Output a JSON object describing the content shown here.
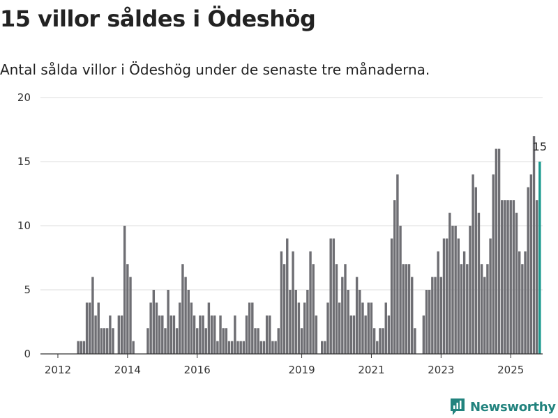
{
  "title": "15 villor såldes i Ödeshög",
  "subtitle": "Antal sålda villor i Ödeshög under de senaste tre månaderna.",
  "brand": {
    "name": "Newsworthy",
    "color": "#22837e"
  },
  "chart_data": {
    "type": "bar",
    "title": "15 villor såldes i Ödeshög",
    "subtitle": "Antal sålda villor i Ödeshög under de senaste tre månaderna.",
    "xlabel": "",
    "ylabel": "",
    "ylim": [
      0,
      20
    ],
    "yticks": [
      0,
      5,
      10,
      15,
      20
    ],
    "xticks": [
      "2012",
      "2014",
      "2016",
      "2019",
      "2021",
      "2023",
      "2025"
    ],
    "xlim": [
      "2011-07",
      "2025-12"
    ],
    "grid": true,
    "bar_color": "#6e6e73",
    "highlight_color": "#1a9a8f",
    "highlight_label": "15",
    "series": [
      {
        "start": "2012-08",
        "values": [
          1,
          1,
          1,
          4,
          4,
          6,
          3,
          4,
          2,
          2,
          2,
          3,
          2,
          0,
          3,
          3,
          10,
          7,
          6,
          1,
          0,
          0,
          0,
          0,
          2,
          4,
          5,
          4,
          3,
          3,
          2,
          5,
          3,
          3,
          2,
          4,
          7,
          6,
          5,
          4,
          3,
          2,
          3,
          3,
          2,
          4,
          3,
          3,
          1,
          3,
          2,
          2,
          1,
          1,
          3,
          1,
          1,
          1,
          3,
          4,
          4,
          2,
          2,
          1,
          1,
          3,
          3,
          1,
          1,
          2,
          8,
          7,
          9,
          5,
          8,
          5,
          4,
          2,
          4,
          5,
          8,
          7,
          3,
          0,
          1,
          1,
          4,
          9,
          9,
          7,
          4,
          6,
          7,
          5,
          3,
          3,
          6,
          5,
          4,
          3,
          4,
          4,
          2,
          1,
          2,
          2,
          4,
          3,
          9,
          12,
          14,
          10,
          7,
          7,
          7,
          6,
          2,
          0,
          0,
          3,
          5,
          5,
          6,
          6,
          8,
          6,
          9,
          9,
          11,
          10,
          10,
          9,
          7,
          8,
          7,
          10,
          14,
          13,
          11,
          7,
          6,
          7,
          9,
          14,
          16,
          16,
          12,
          12,
          12,
          12,
          12,
          11,
          8,
          7,
          8,
          13,
          14,
          17,
          12,
          15
        ]
      }
    ],
    "last_value": 15
  }
}
